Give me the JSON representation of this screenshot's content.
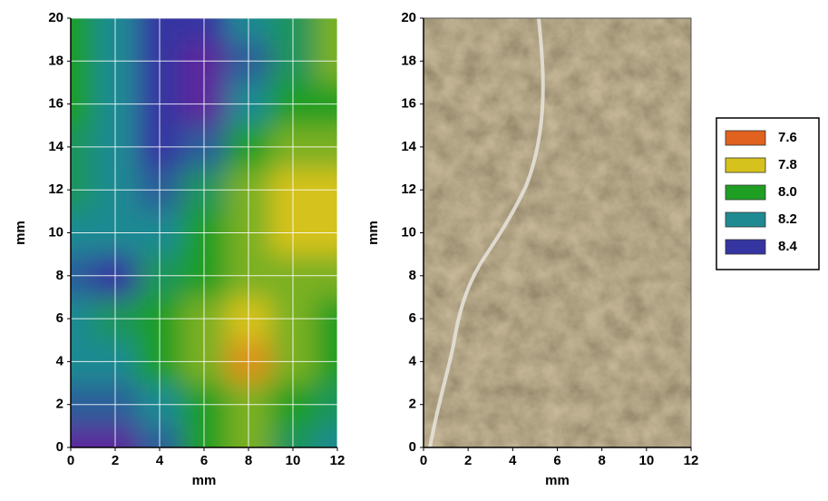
{
  "chart_data": [
    {
      "type": "heatmap",
      "xlabel": "mm",
      "ylabel": "mm",
      "x": [
        0,
        2,
        4,
        6,
        8,
        10,
        12
      ],
      "y": [
        0,
        2,
        4,
        6,
        8,
        10,
        12,
        14,
        16,
        18,
        20
      ],
      "values": [
        [
          8.5,
          8.5,
          8.3,
          8.0,
          7.9,
          8.1,
          8.2
        ],
        [
          8.3,
          8.3,
          8.2,
          8.0,
          7.9,
          8.0,
          8.1
        ],
        [
          8.2,
          8.2,
          8.0,
          7.9,
          7.7,
          7.9,
          8.0
        ],
        [
          8.2,
          8.1,
          8.0,
          7.9,
          7.8,
          7.9,
          8.0
        ],
        [
          8.3,
          8.4,
          8.1,
          8.0,
          7.9,
          7.9,
          7.9
        ],
        [
          8.2,
          8.2,
          8.2,
          8.0,
          7.9,
          7.8,
          7.8
        ],
        [
          8.1,
          8.2,
          8.3,
          8.1,
          7.9,
          7.8,
          7.8
        ],
        [
          8.1,
          8.2,
          8.4,
          8.3,
          8.0,
          7.9,
          7.9
        ],
        [
          8.0,
          8.2,
          8.4,
          8.5,
          8.2,
          8.0,
          8.0
        ],
        [
          8.0,
          8.2,
          8.4,
          8.5,
          8.3,
          8.1,
          7.9
        ],
        [
          8.0,
          8.2,
          8.4,
          8.4,
          8.2,
          8.1,
          7.9
        ]
      ],
      "xlim": [
        0,
        12
      ],
      "xticks": [
        0,
        2,
        4,
        6,
        8,
        10,
        12
      ],
      "ylim": [
        0,
        20
      ],
      "yticks": [
        0,
        2,
        4,
        6,
        8,
        10,
        12,
        14,
        16,
        18,
        20
      ],
      "grid": true,
      "legend": {
        "position": "right",
        "levels": [
          7.6,
          7.8,
          {
            "value": 8,
            "label": "8.0"
          },
          8.2,
          8.4
        ],
        "colors": [
          "#e0621e",
          "#d6c21c",
          "#1f9e24",
          "#1f8a92",
          "#3535a2"
        ]
      }
    },
    {
      "type": "image",
      "xlabel": "mm",
      "ylabel": "mm",
      "xlim": [
        0,
        12
      ],
      "xticks": [
        0,
        2,
        4,
        6,
        8,
        10,
        12
      ],
      "ylim": [
        0,
        20
      ],
      "yticks": [
        0,
        2,
        4,
        6,
        8,
        10,
        12,
        14,
        16,
        18,
        20
      ],
      "grid": false
    }
  ]
}
